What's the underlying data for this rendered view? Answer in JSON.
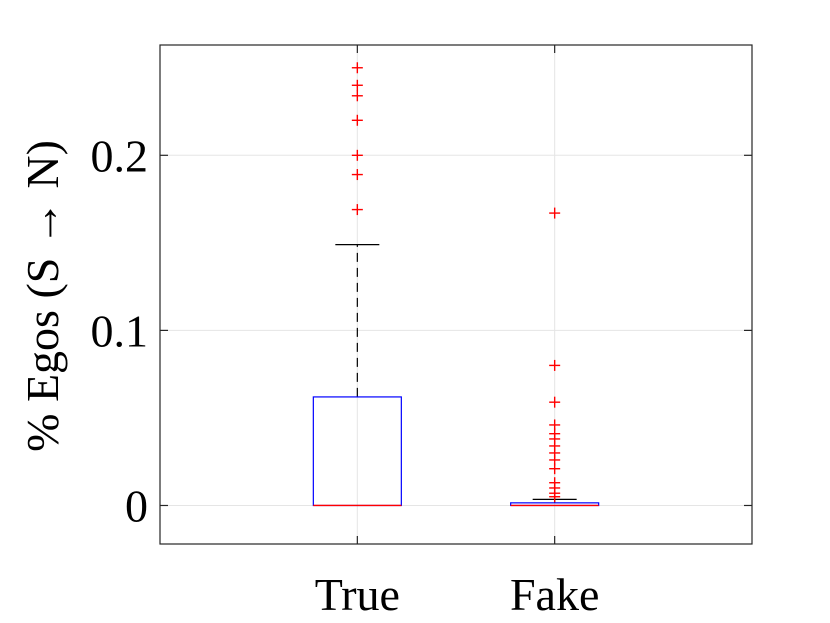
{
  "chart_data": {
    "type": "box",
    "title": "",
    "xlabel": "",
    "ylabel": "% Egos (S → N)",
    "ylim": [
      -0.022,
      0.263
    ],
    "yticks": [
      0,
      0.1,
      0.2
    ],
    "ytick_labels": [
      "0",
      "0.1",
      "0.2"
    ],
    "grid": true,
    "categories": [
      "True",
      "Fake"
    ],
    "colors": {
      "box": "#0000ff",
      "median": "#ff0000",
      "whisker": "#000000",
      "outlier": "#ff0000",
      "grid": "#e5e5e5"
    },
    "boxes": [
      {
        "name": "True",
        "q1": 0.0,
        "median": 0.0,
        "q3": 0.062,
        "whisker_low": 0.0,
        "whisker_high": 0.149,
        "outliers": [
          0.169,
          0.189,
          0.2,
          0.22,
          0.234,
          0.24,
          0.25
        ]
      },
      {
        "name": "Fake",
        "q1": 0.0,
        "median": 0.0,
        "q3": 0.0015,
        "whisker_low": 0.0,
        "whisker_high": 0.0035,
        "outliers": [
          0.005,
          0.007,
          0.01,
          0.013,
          0.021,
          0.026,
          0.03,
          0.034,
          0.038,
          0.041,
          0.046,
          0.059,
          0.08,
          0.167
        ]
      }
    ]
  }
}
